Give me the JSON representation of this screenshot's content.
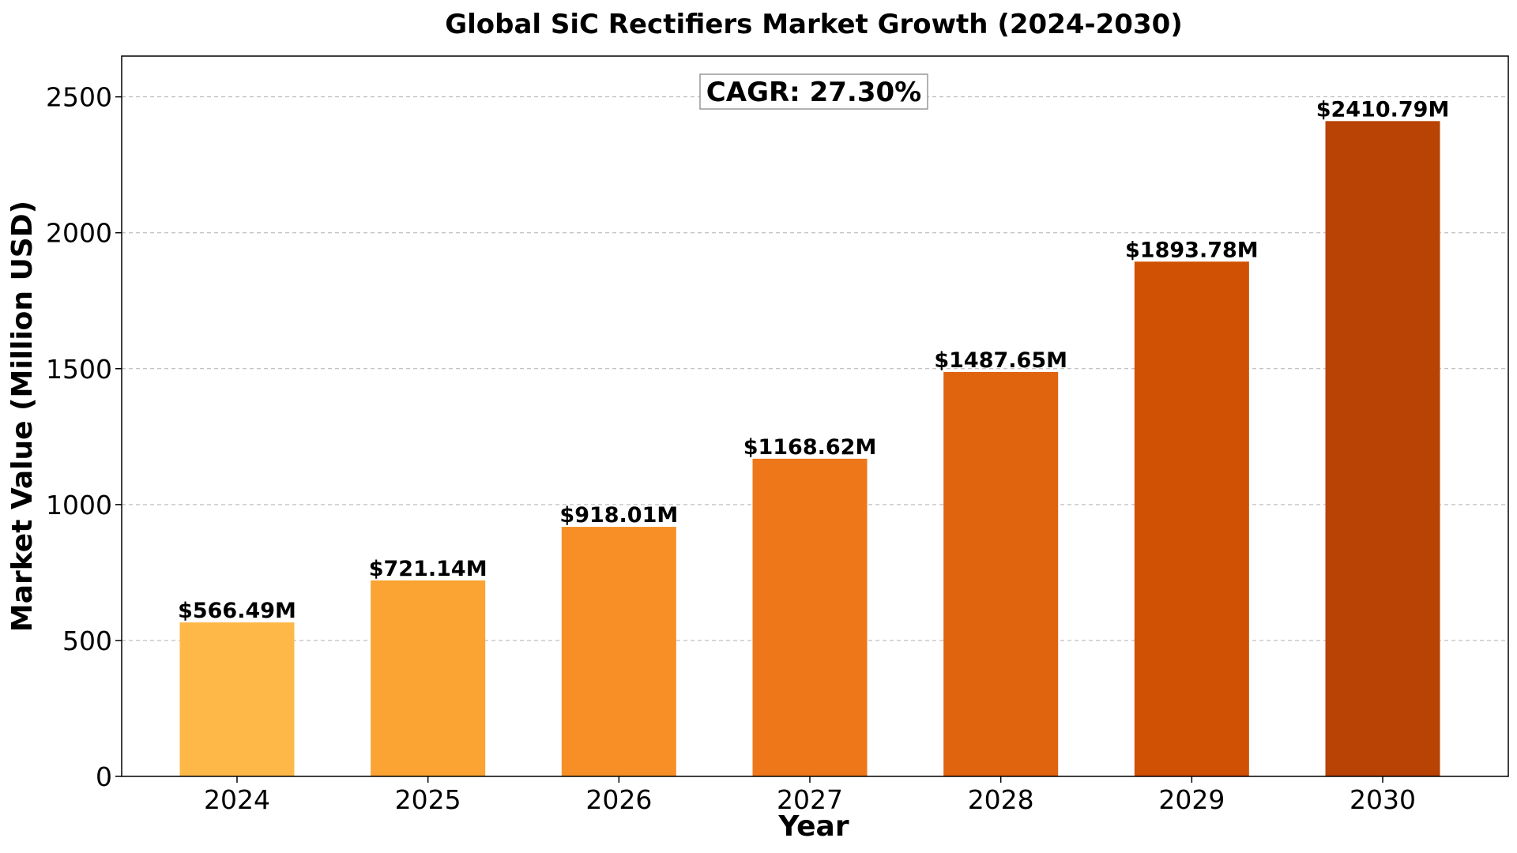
{
  "chart_data": {
    "type": "bar",
    "title": "Global SiC Rectifiers Market Growth (2024-2030)",
    "xlabel": "Year",
    "ylabel": "Market Value (Million USD)",
    "categories": [
      "2024",
      "2025",
      "2026",
      "2027",
      "2028",
      "2029",
      "2030"
    ],
    "values": [
      566.49,
      721.14,
      918.01,
      1168.62,
      1487.65,
      1893.78,
      2410.79
    ],
    "data_labels": [
      "$566.49M",
      "$721.14M",
      "$918.01M",
      "$1168.62M",
      "$1487.65M",
      "$1893.78M",
      "$2410.79M"
    ],
    "colors": [
      "#FDB847",
      "#FBA333",
      "#F78F26",
      "#EE7719",
      "#E0630E",
      "#D05004",
      "#B84304"
    ],
    "ylim": [
      0,
      2650
    ],
    "yticks": [
      0,
      500,
      1000,
      1500,
      2000,
      2500
    ],
    "ytick_labels": [
      "0",
      "500",
      "1000",
      "1500",
      "2000",
      "2500"
    ],
    "grid": "y-axis dashed",
    "legend": "none",
    "annotation": "CAGR: 27.30%"
  }
}
